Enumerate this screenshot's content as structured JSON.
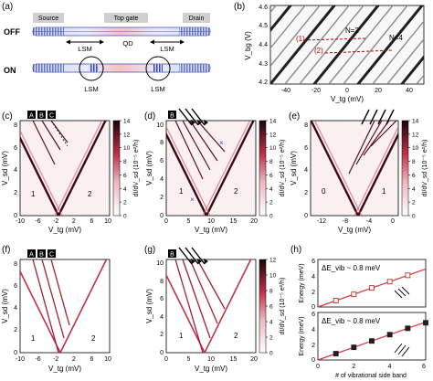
{
  "figure": {
    "panel_labels": [
      "(a)",
      "(b)",
      "(c)",
      "(d)",
      "(e)",
      "(f)",
      "(g)",
      "(h)"
    ]
  },
  "panel_a": {
    "off_label": "OFF",
    "on_label": "ON",
    "source": "Source",
    "top_gate": "Top gate",
    "drain": "Drain",
    "lsm_left": "LSM",
    "qd": "QD",
    "lsm_right": "LSM",
    "on_lsm_left": "LSM",
    "on_lsm_right": "LSM"
  },
  "panel_b": {
    "ylabel": "V_bg (V)",
    "xlabel": "V_tg (mV)",
    "xticks": [
      "-40",
      "-20",
      "0",
      "20",
      "40"
    ],
    "yticks": [
      "4.6",
      "4.5",
      "4.4",
      "4.3",
      "4.2"
    ],
    "n2": "N=2",
    "n4": "N=4",
    "line1": "(1)",
    "line2": "(2)"
  },
  "maps": {
    "c": {
      "xticks": [
        "-10",
        "-6",
        "-2",
        "2",
        "6",
        "10"
      ],
      "yticks": [
        "8",
        "6",
        "4",
        "2",
        "0"
      ],
      "ylabel": "V_sd (mV)",
      "xlabel": "V_tg (mV)",
      "regions": [
        "1",
        "2"
      ],
      "boxes": [
        "A",
        "B",
        "C"
      ]
    },
    "d": {
      "xticks": [
        "0",
        "5",
        "10",
        "15",
        "20"
      ],
      "yticks": [
        "10",
        "8",
        "6",
        "4",
        "2",
        "0"
      ],
      "ylabel": "V_sd (mV)",
      "xlabel": "V_tg (mV)",
      "regions": [
        "1",
        "2"
      ],
      "boxes": [
        "B"
      ]
    },
    "e": {
      "xticks": [
        "-12",
        "-8",
        "-4",
        "0"
      ],
      "yticks": [
        "8",
        "6",
        "4",
        "2",
        "0"
      ],
      "ylabel": "V_sd (mV)",
      "xlabel": "V_tg (mV)",
      "regions": [
        "0",
        "1"
      ]
    },
    "f": {
      "xticks": [
        "-10",
        "-6",
        "-2",
        "2",
        "6",
        "10"
      ],
      "yticks": [
        "8",
        "6",
        "4",
        "2",
        "0"
      ],
      "ylabel": "V_sd (mV)",
      "xlabel": "V_tg (mV)",
      "regions": [
        "1",
        "2"
      ],
      "boxes": [
        "A",
        "B",
        "C"
      ]
    },
    "g": {
      "xticks": [
        "0",
        "5",
        "10",
        "15",
        "20"
      ],
      "yticks": [
        "10",
        "8",
        "6",
        "4",
        "2",
        "0"
      ],
      "ylabel": "V_sd (mV)",
      "xlabel": "V_tg (mV)",
      "regions": [
        "1",
        "2"
      ],
      "boxes": [
        "B"
      ]
    }
  },
  "colorbars": {
    "c": {
      "ticks": [
        "14",
        "12",
        "10",
        "8",
        "6",
        "4",
        "2",
        "0"
      ],
      "label": "dI/dV_sd (10⁻⁵ e²/h)"
    },
    "d": {
      "ticks": [
        "14",
        "12",
        "10",
        "8",
        "6",
        "4",
        "2",
        "0"
      ],
      "label": "dI/dV_sd (10⁻⁵ e²/h)"
    },
    "e": {
      "ticks": [
        "14",
        "12",
        "10",
        "8",
        "6",
        "4",
        "2",
        "0"
      ],
      "label": "dI/dV_sd (10⁻⁵ e²/h)"
    },
    "g": {
      "ticks": [
        "12",
        "10",
        "8",
        "6",
        "4",
        "2",
        "0"
      ],
      "label": "dI/dV_sd (10⁻⁵ e²/h)"
    }
  },
  "chart_data": [
    {
      "type": "scatter",
      "title": "ΔE_vib ~ 0.8 meV",
      "xlabel": "# of vibrational side band",
      "ylabel": "Energy (meV)",
      "xlim": [
        0,
        6
      ],
      "ylim": [
        0,
        6
      ],
      "xticks": [
        "0",
        "2",
        "4",
        "6"
      ],
      "yticks": [
        "6",
        "4",
        "2",
        "0"
      ],
      "x": [
        1,
        2,
        3,
        4,
        5
      ],
      "y": [
        0.8,
        1.6,
        2.4,
        3.2,
        4.0
      ],
      "fit": {
        "slope": 0.8
      },
      "marker": "open-square"
    },
    {
      "type": "scatter",
      "title": "ΔE_vib ~ 0.8 meV",
      "xlabel": "# of vibrational side band",
      "ylabel": "Energy (meV)",
      "xlim": [
        0,
        6
      ],
      "ylim": [
        0,
        6
      ],
      "xticks": [
        "0",
        "2",
        "4",
        "6"
      ],
      "yticks": [
        "6",
        "4",
        "2",
        "0"
      ],
      "x": [
        1,
        2,
        3,
        4,
        5,
        6
      ],
      "y": [
        0.8,
        1.6,
        2.4,
        3.2,
        4.0,
        4.7
      ],
      "fit": {
        "slope": 0.8
      },
      "marker": "filled-square"
    }
  ],
  "colors": {
    "map_dark": "#2a0a12",
    "map_mid": "#b0304a",
    "map_light": "#f2c8cc",
    "fit_line": "#e0303a",
    "dashed_red": "#c00000",
    "gate_blue": "#3a4bb8",
    "qd_red": "#f08080"
  }
}
